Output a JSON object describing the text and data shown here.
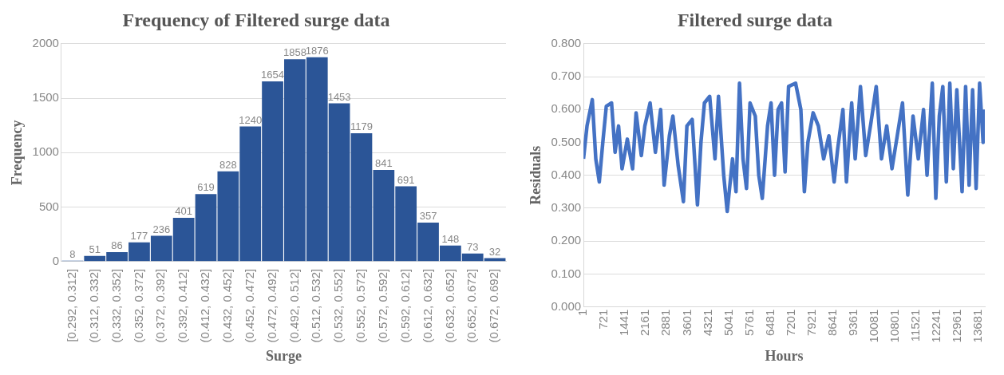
{
  "chart_data": [
    {
      "type": "bar",
      "title": "Frequency of Filtered surge data",
      "xlabel": "Surge",
      "ylabel": "Frequency",
      "categories": [
        "[0.292, 0.312]",
        "(0.312, 0.332]",
        "(0.332, 0.352]",
        "(0.352, 0.372]",
        "(0.372, 0.392]",
        "(0.392, 0.412]",
        "(0.412, 0.432]",
        "(0.432, 0.452]",
        "(0.452, 0.472]",
        "(0.472, 0.492]",
        "(0.492, 0.512]",
        "(0.512, 0.532]",
        "(0.532, 0.552]",
        "(0.552, 0.572]",
        "(0.572, 0.592]",
        "(0.592, 0.612]",
        "(0.612, 0.632]",
        "(0.632, 0.652]",
        "(0.652, 0.672]",
        "(0.672, 0.692]"
      ],
      "values": [
        8,
        51,
        86,
        177,
        236,
        401,
        619,
        828,
        1240,
        1654,
        1858,
        1876,
        1453,
        1179,
        841,
        691,
        357,
        148,
        73,
        32
      ],
      "color": "#2b5597",
      "ylim": [
        0,
        2000
      ],
      "yticks": [
        0,
        500,
        1000,
        1500,
        2000
      ],
      "grid": "y",
      "data_labels": true,
      "legend": false
    },
    {
      "type": "line",
      "title": "Filtered surge data",
      "xlabel": "Hours",
      "ylabel": "Residuals",
      "color": "#4472c4",
      "x": [
        1,
        122,
        305,
        426,
        547,
        669,
        790,
        972,
        1094,
        1215,
        1336,
        1518,
        1701,
        1822,
        2004,
        2125,
        2307,
        2490,
        2672,
        2793,
        2975,
        3097,
        3279,
        3461,
        3582,
        3765,
        3947,
        4068,
        4189,
        4371,
        4554,
        4675,
        4857,
        4978,
        5161,
        5282,
        5403,
        5525,
        5646,
        5768,
        5950,
        6071,
        6192,
        6375,
        6496,
        6617,
        6739,
        6860,
        6982,
        7103,
        7346,
        7528,
        7650,
        7771,
        7953,
        8135,
        8317,
        8499,
        8681,
        8803,
        8985,
        9106,
        9288,
        9410,
        9592,
        9774,
        9956,
        10138,
        10320,
        10502,
        10684,
        10866,
        11048,
        11231,
        11413,
        11595,
        11777,
        11898,
        12080,
        12202,
        12323,
        12444,
        12566,
        12687,
        12808,
        12930,
        13112,
        13234,
        13355,
        13476,
        13597,
        13719,
        13840,
        13900
      ],
      "values": [
        0.45,
        0.55,
        0.63,
        0.45,
        0.38,
        0.5,
        0.61,
        0.62,
        0.47,
        0.55,
        0.42,
        0.51,
        0.42,
        0.59,
        0.46,
        0.55,
        0.62,
        0.47,
        0.6,
        0.37,
        0.52,
        0.58,
        0.43,
        0.32,
        0.55,
        0.57,
        0.31,
        0.5,
        0.62,
        0.64,
        0.45,
        0.64,
        0.4,
        0.29,
        0.45,
        0.35,
        0.68,
        0.45,
        0.36,
        0.62,
        0.58,
        0.4,
        0.33,
        0.55,
        0.62,
        0.4,
        0.6,
        0.62,
        0.41,
        0.67,
        0.68,
        0.6,
        0.35,
        0.5,
        0.59,
        0.55,
        0.45,
        0.52,
        0.38,
        0.48,
        0.6,
        0.38,
        0.62,
        0.45,
        0.67,
        0.46,
        0.56,
        0.67,
        0.45,
        0.55,
        0.42,
        0.52,
        0.62,
        0.34,
        0.58,
        0.45,
        0.6,
        0.4,
        0.68,
        0.33,
        0.58,
        0.67,
        0.38,
        0.68,
        0.42,
        0.66,
        0.35,
        0.67,
        0.37,
        0.66,
        0.36,
        0.68,
        0.5,
        0.6
      ],
      "xlim": [
        1,
        13900
      ],
      "xticks": [
        1,
        721,
        1441,
        2161,
        2881,
        3601,
        4321,
        5041,
        5761,
        6481,
        7201,
        7921,
        8641,
        9361,
        10081,
        10801,
        11521,
        12241,
        12961,
        13681
      ],
      "ylim": [
        0,
        0.8
      ],
      "yticks": [
        {
          "value": 0,
          "label": "0.000"
        },
        {
          "value": 0.1,
          "label": "0.100"
        },
        {
          "value": 0.2,
          "label": "0.200"
        },
        {
          "value": 0.3,
          "label": "0.300"
        },
        {
          "value": 0.4,
          "label": "0.400"
        },
        {
          "value": 0.5,
          "label": "0.500"
        },
        {
          "value": 0.6,
          "label": "0.600"
        },
        {
          "value": 0.7,
          "label": "0.700"
        },
        {
          "value": 0.8,
          "label": "0.800"
        }
      ],
      "grid": "y",
      "marker": "none",
      "legend": false
    }
  ]
}
